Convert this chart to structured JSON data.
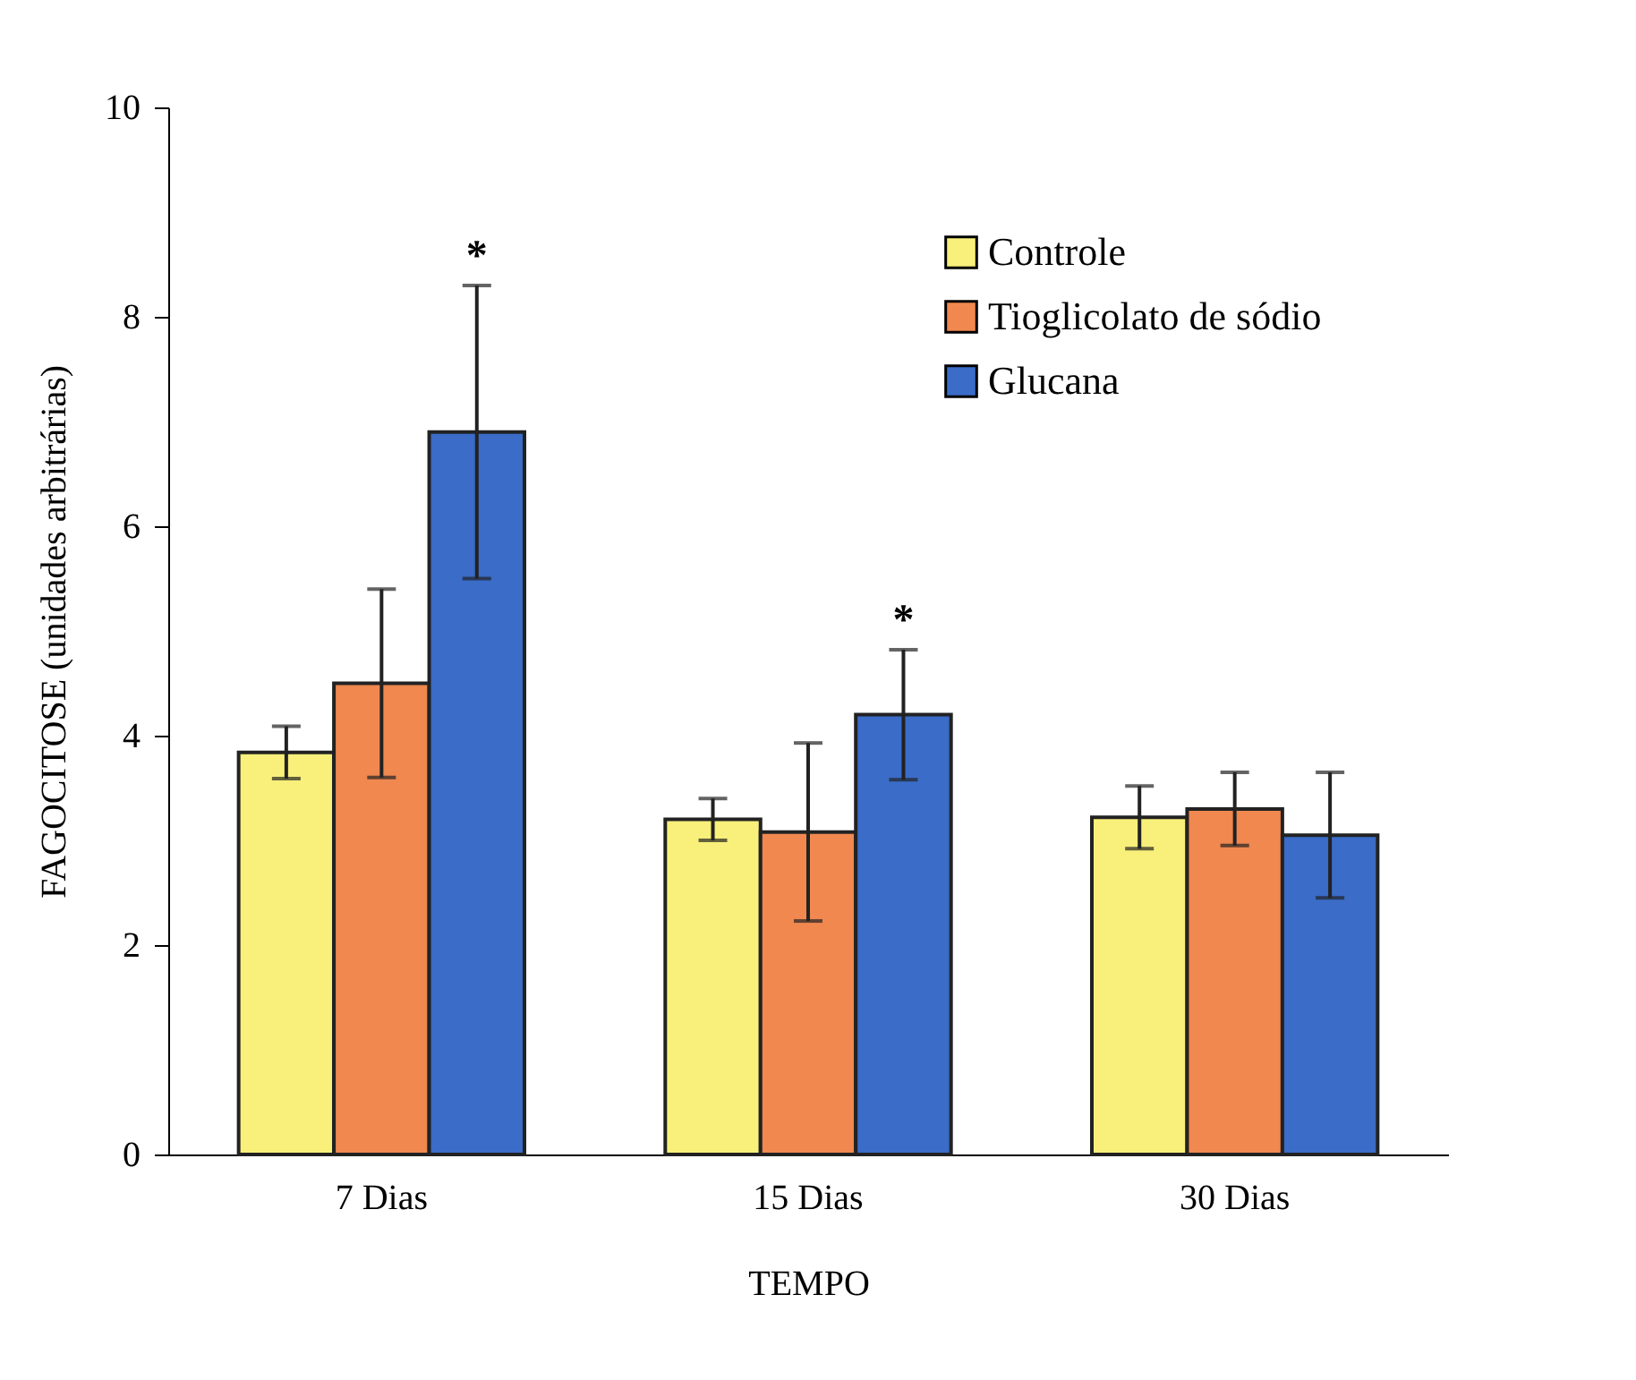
{
  "chart_data": {
    "type": "bar",
    "xlabel": "TEMPO",
    "ylabel": "FAGOCITOSE (unidades arbitrárias)",
    "categories": [
      "7 Dias",
      "15 Dias",
      "30 Dias"
    ],
    "series": [
      {
        "name": "Controle",
        "color": "#f8f07a",
        "values": [
          3.84,
          3.2,
          3.22
        ],
        "errors": [
          0.25,
          0.2,
          0.3
        ]
      },
      {
        "name": "Tioglicolato de sódio",
        "color": "#f08850",
        "values": [
          4.5,
          3.08,
          3.3
        ],
        "errors": [
          0.9,
          0.85,
          0.35
        ]
      },
      {
        "name": "Glucana",
        "color": "#3a6cc8",
        "values": [
          6.9,
          4.2,
          3.05
        ],
        "errors": [
          1.4,
          0.62,
          0.6
        ]
      }
    ],
    "ylim": [
      0,
      10
    ],
    "yticks": [
      0,
      2,
      4,
      6,
      8,
      10
    ],
    "grid": false,
    "legend": "top right",
    "annotations": [
      "*",
      "*"
    ]
  }
}
